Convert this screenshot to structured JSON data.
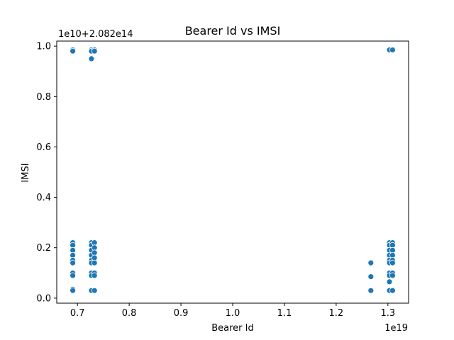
{
  "chart_data": {
    "type": "scatter",
    "title": "Bearer Id vs IMSI",
    "xlabel": "Bearer Id",
    "ylabel": "IMSI",
    "x_offset_text": "1e19",
    "y_offset_text": "1e10+2.082e14",
    "xlim": [
      0.66,
      1.34
    ],
    "ylim": [
      -0.02,
      1.02
    ],
    "xticks": [
      0.7,
      0.8,
      0.9,
      1.0,
      1.1,
      1.2,
      1.3
    ],
    "xtick_labels": [
      "0.7",
      "0.8",
      "0.9",
      "1.0",
      "1.1",
      "1.2",
      "1.3"
    ],
    "yticks": [
      0.0,
      0.2,
      0.4,
      0.6,
      0.8,
      1.0
    ],
    "ytick_labels": [
      "0.0",
      "0.2",
      "0.4",
      "0.6",
      "0.8",
      "1.0"
    ],
    "grid": false,
    "color": "#1f77b4",
    "points": [
      [
        0.691,
        0.985
      ],
      [
        0.691,
        0.98
      ],
      [
        0.691,
        0.22
      ],
      [
        0.691,
        0.21
      ],
      [
        0.691,
        0.19
      ],
      [
        0.691,
        0.17
      ],
      [
        0.691,
        0.15
      ],
      [
        0.691,
        0.14
      ],
      [
        0.691,
        0.1
      ],
      [
        0.691,
        0.09
      ],
      [
        0.691,
        0.035
      ],
      [
        0.691,
        0.03
      ],
      [
        0.727,
        0.985
      ],
      [
        0.727,
        0.98
      ],
      [
        0.727,
        0.95
      ],
      [
        0.727,
        0.22
      ],
      [
        0.727,
        0.21
      ],
      [
        0.727,
        0.19
      ],
      [
        0.727,
        0.17
      ],
      [
        0.727,
        0.15
      ],
      [
        0.727,
        0.14
      ],
      [
        0.727,
        0.1
      ],
      [
        0.727,
        0.09
      ],
      [
        0.727,
        0.03
      ],
      [
        0.733,
        0.985
      ],
      [
        0.733,
        0.98
      ],
      [
        0.733,
        0.22
      ],
      [
        0.733,
        0.2
      ],
      [
        0.733,
        0.18
      ],
      [
        0.733,
        0.16
      ],
      [
        0.733,
        0.14
      ],
      [
        0.733,
        0.1
      ],
      [
        0.733,
        0.09
      ],
      [
        0.733,
        0.03
      ],
      [
        1.267,
        0.14
      ],
      [
        1.267,
        0.085
      ],
      [
        1.267,
        0.03
      ],
      [
        1.303,
        0.985
      ],
      [
        1.303,
        0.22
      ],
      [
        1.303,
        0.21
      ],
      [
        1.303,
        0.19
      ],
      [
        1.303,
        0.17
      ],
      [
        1.303,
        0.15
      ],
      [
        1.303,
        0.14
      ],
      [
        1.303,
        0.1
      ],
      [
        1.303,
        0.09
      ],
      [
        1.303,
        0.065
      ],
      [
        1.303,
        0.03
      ],
      [
        1.309,
        0.985
      ],
      [
        1.309,
        0.22
      ],
      [
        1.309,
        0.21
      ],
      [
        1.309,
        0.19
      ],
      [
        1.309,
        0.17
      ],
      [
        1.309,
        0.15
      ],
      [
        1.309,
        0.14
      ],
      [
        1.309,
        0.1
      ],
      [
        1.309,
        0.09
      ],
      [
        1.309,
        0.03
      ]
    ]
  }
}
